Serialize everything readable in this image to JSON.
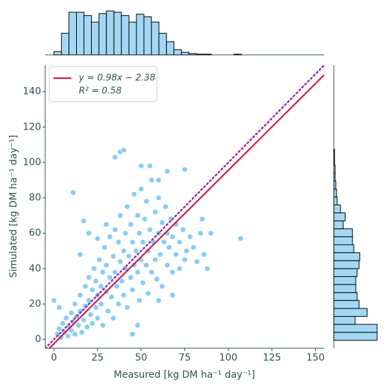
{
  "chart_data": {
    "type": "joint-scatter",
    "x_label": "Measured [kg DM ha⁻¹ day⁻¹]",
    "y_label": "Simulated [kg DM ha⁻¹ day⁻¹]",
    "xlim": [
      -5,
      155
    ],
    "ylim": [
      -5,
      155
    ],
    "xticks": [
      0,
      25,
      50,
      75,
      100,
      125,
      150
    ],
    "yticks": [
      0,
      20,
      40,
      60,
      80,
      100,
      120,
      140
    ],
    "scatter_color": "#87cefa",
    "x": [
      2,
      3,
      4,
      5,
      6,
      7,
      8,
      9,
      10,
      10,
      11,
      12,
      12,
      13,
      14,
      15,
      15,
      16,
      17,
      18,
      18,
      19,
      20,
      20,
      21,
      22,
      22,
      23,
      24,
      24,
      25,
      25,
      26,
      27,
      27,
      28,
      28,
      29,
      30,
      30,
      31,
      32,
      32,
      33,
      34,
      34,
      35,
      35,
      36,
      37,
      37,
      38,
      38,
      39,
      40,
      40,
      41,
      41,
      42,
      42,
      43,
      44,
      44,
      45,
      45,
      46,
      46,
      47,
      48,
      48,
      49,
      49,
      50,
      50,
      51,
      51,
      52,
      53,
      53,
      54,
      54,
      55,
      56,
      56,
      57,
      58,
      58,
      59,
      60,
      60,
      61,
      62,
      62,
      63,
      64,
      65,
      65,
      66,
      67,
      68,
      68,
      70,
      70,
      72,
      72,
      74,
      75,
      76,
      78,
      80,
      82,
      84,
      86,
      88,
      35,
      38,
      40,
      50,
      55,
      60,
      65,
      75,
      107,
      11,
      17,
      45,
      20,
      25,
      30,
      15,
      0,
      3,
      48,
      60,
      68,
      85,
      90
    ],
    "values": [
      3,
      6,
      1,
      9,
      4,
      12,
      2,
      7,
      15,
      5,
      10,
      3,
      20,
      13,
      8,
      25,
      16,
      4,
      11,
      30,
      19,
      7,
      22,
      35,
      14,
      28,
      9,
      40,
      18,
      33,
      25,
      12,
      45,
      30,
      20,
      38,
      8,
      52,
      27,
      42,
      16,
      35,
      58,
      24,
      47,
      12,
      38,
      62,
      30,
      20,
      55,
      44,
      70,
      33,
      50,
      25,
      60,
      40,
      75,
      18,
      47,
      35,
      65,
      55,
      28,
      82,
      42,
      50,
      38,
      70,
      22,
      60,
      45,
      85,
      55,
      32,
      68,
      42,
      78,
      50,
      26,
      62,
      38,
      90,
      55,
      72,
      45,
      34,
      60,
      80,
      48,
      66,
      30,
      55,
      75,
      42,
      60,
      52,
      68,
      38,
      58,
      48,
      65,
      55,
      40,
      62,
      45,
      50,
      58,
      52,
      44,
      60,
      48,
      40,
      103,
      106,
      107,
      98,
      98,
      90,
      95,
      96,
      57,
      83,
      67,
      3,
      60,
      57,
      65,
      48,
      22,
      18,
      8,
      22,
      25,
      68,
      60
    ],
    "fit": {
      "slope": 0.98,
      "intercept": -2.38,
      "color": "#dc143c",
      "legend": [
        "y = 0.98x − 2.38",
        "R² = 0.58"
      ]
    },
    "identity": {
      "slope": 1,
      "intercept": 0,
      "color": "#9c27b0",
      "dash": "dotted"
    },
    "hist_color": "#a3d8f4",
    "top_hist": {
      "bins": [
        0,
        4.3,
        8.6,
        12.9,
        17.2,
        21.5,
        25.8,
        30.1,
        34.4,
        38.7,
        43,
        47.3,
        51.6,
        55.9,
        60.2,
        64.5,
        68.8,
        73.1,
        77.4,
        81.7,
        86,
        90.3,
        94.6,
        98.9,
        103.2,
        107.5
      ],
      "counts": [
        5,
        33,
        65,
        65,
        60,
        50,
        63,
        67,
        65,
        60,
        50,
        62,
        58,
        50,
        33,
        20,
        8,
        4,
        2,
        1,
        1,
        0,
        0,
        0,
        1
      ],
      "lim": [
        0,
        68
      ]
    },
    "right_hist": {
      "bins": [
        -0.5,
        4,
        8.5,
        13,
        17.5,
        22,
        26.5,
        31,
        35.5,
        40,
        44.5,
        49,
        53.5,
        58,
        62.5,
        67,
        71.5,
        76,
        80.5,
        85,
        89.5,
        94,
        98.5,
        103,
        107.5
      ],
      "counts": [
        65,
        65,
        32,
        50,
        38,
        35,
        33,
        33,
        35,
        38,
        39,
        30,
        28,
        28,
        14,
        17,
        10,
        5,
        4,
        3,
        2,
        2,
        1,
        1
      ],
      "lim": [
        0,
        68
      ]
    }
  }
}
